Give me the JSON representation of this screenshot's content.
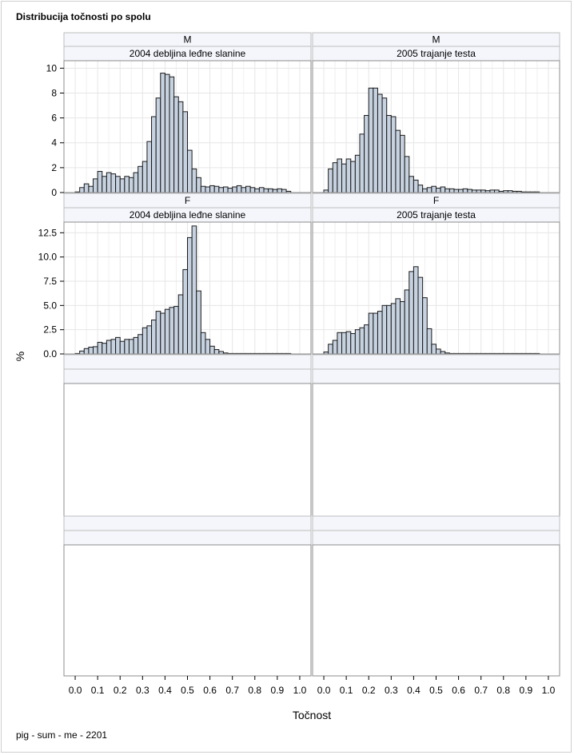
{
  "title": "Distribucija točnosti po spolu",
  "footnote": "pig - sum - me - 2201",
  "colors": {
    "bar_fill": "#c7d2e0",
    "bar_stroke": "#1a1a1a",
    "header_fill": "#f4f6fc",
    "grid": "#e6e6e6"
  },
  "chart_data": {
    "type": "bar",
    "subtype": "histogram-panel",
    "xlabel": "Točnost",
    "ylabel": "%",
    "x_ticks": [
      "0.0",
      "0.1",
      "0.2",
      "0.3",
      "0.4",
      "0.5",
      "0.6",
      "0.7",
      "0.8",
      "0.9",
      "1.0"
    ],
    "xlim": [
      -0.05,
      1.05
    ],
    "bin_width": 0.02,
    "bin_start": 0.0,
    "grid": true,
    "columns": [
      "2004 debljina leđne slanine",
      "2005 trajanje testa"
    ],
    "rows": [
      {
        "group": "M",
        "ylim": [
          0,
          10.6
        ],
        "y_ticks": [
          "0",
          "2",
          "4",
          "6",
          "8",
          "10"
        ]
      },
      {
        "group": "F",
        "ylim": [
          0,
          13.6
        ],
        "y_ticks": [
          "0.0",
          "2.5",
          "5.0",
          "7.5",
          "10.0",
          "12.5"
        ]
      }
    ],
    "panels": [
      {
        "group": "M",
        "trait": "2004 debljina leđne slanine",
        "values": [
          0.05,
          0.4,
          0.7,
          0.5,
          1.1,
          1.7,
          1.3,
          1.6,
          1.5,
          1.3,
          1.1,
          1.3,
          1.2,
          1.6,
          2.1,
          2.5,
          4.1,
          6.1,
          7.6,
          9.6,
          9.5,
          9.3,
          7.7,
          7.3,
          6.5,
          3.4,
          1.9,
          1.2,
          0.5,
          0.45,
          0.55,
          0.5,
          0.4,
          0.45,
          0.35,
          0.45,
          0.55,
          0.4,
          0.5,
          0.4,
          0.3,
          0.4,
          0.3,
          0.3,
          0.25,
          0.3,
          0.25,
          0.1
        ]
      },
      {
        "group": "M",
        "trait": "2005 trajanje testa",
        "values": [
          0.2,
          1.9,
          2.4,
          2.7,
          2.3,
          2.7,
          2.5,
          3.0,
          4.7,
          6.2,
          8.4,
          8.4,
          7.9,
          7.6,
          6.2,
          6.1,
          5.0,
          4.6,
          2.9,
          1.3,
          1.0,
          0.6,
          0.3,
          0.4,
          0.5,
          0.35,
          0.45,
          0.3,
          0.3,
          0.25,
          0.25,
          0.3,
          0.25,
          0.2,
          0.2,
          0.2,
          0.15,
          0.2,
          0.2,
          0.1,
          0.15,
          0.15,
          0.1,
          0.1,
          0.05,
          0.05,
          0.05,
          0.05
        ]
      },
      {
        "group": "F",
        "trait": "2004 debljina leđne slanine",
        "values": [
          0.05,
          0.3,
          0.55,
          0.7,
          0.75,
          1.2,
          1.1,
          1.4,
          1.5,
          1.7,
          1.3,
          1.5,
          1.5,
          1.7,
          2.0,
          2.7,
          2.9,
          3.5,
          4.4,
          4.2,
          4.6,
          4.8,
          4.9,
          6.1,
          8.7,
          12.0,
          13.2,
          6.5,
          2.2,
          1.5,
          0.8,
          0.45,
          0.25,
          0.1,
          0.05,
          0.05,
          0.05,
          0.05,
          0.05,
          0.05,
          0.05,
          0.05,
          0.05,
          0.05,
          0.05,
          0.05,
          0.05,
          0.05
        ]
      },
      {
        "group": "F",
        "trait": "2005 trajanje testa",
        "values": [
          0.2,
          1.0,
          1.4,
          2.2,
          2.2,
          2.3,
          2.1,
          2.5,
          2.7,
          3.0,
          4.2,
          4.2,
          4.4,
          5.0,
          5.0,
          5.2,
          5.7,
          5.4,
          6.6,
          8.5,
          9.0,
          7.9,
          5.8,
          2.6,
          1.0,
          0.5,
          0.25,
          0.1,
          0.05,
          0.05,
          0.05,
          0.05,
          0.05,
          0.05,
          0.05,
          0.05,
          0.05,
          0.05,
          0.05,
          0.05,
          0.05,
          0.05,
          0.05,
          0.05,
          0.05,
          0.05,
          0.05,
          0.05
        ]
      }
    ]
  }
}
